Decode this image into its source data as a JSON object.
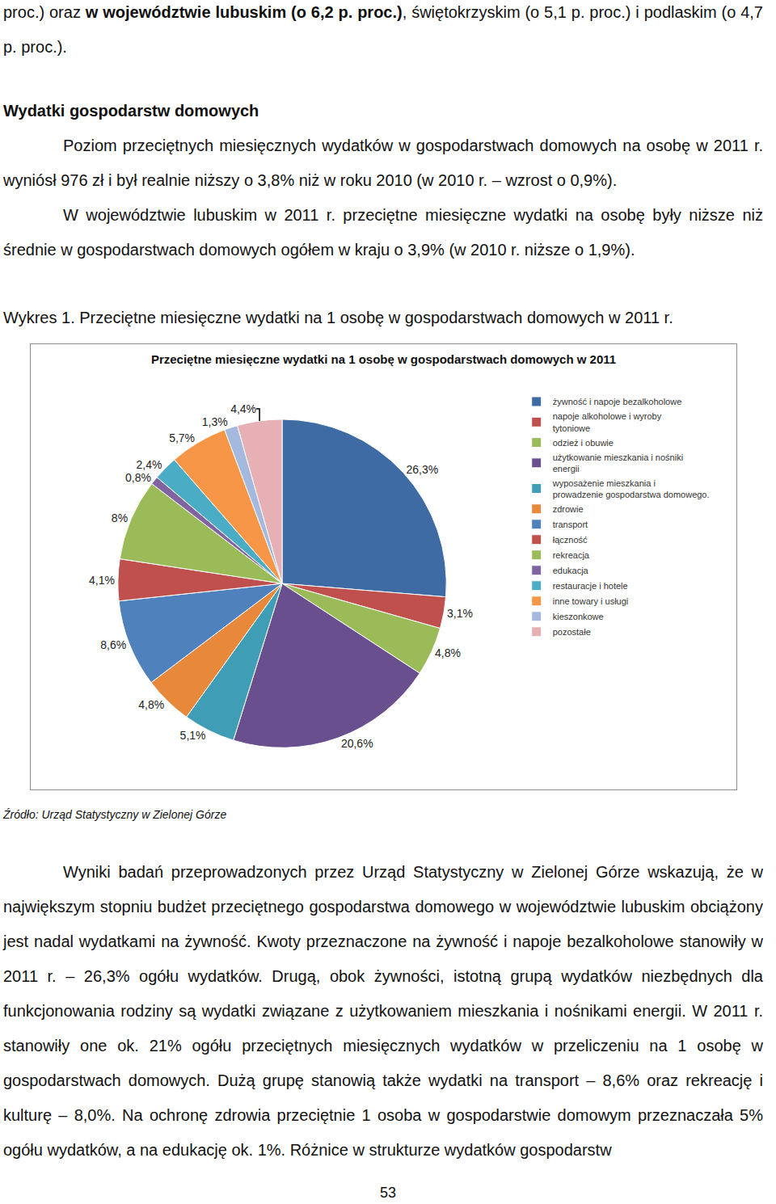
{
  "intro": [
    {
      "text": "proc.) oraz ",
      "bold": false
    },
    {
      "text": "w województwie lubuskim (o 6,2 p. proc.)",
      "bold": true
    },
    {
      "text": ", świętokrzyskim (o 5,1 p. proc.) i podlaskim (o 4,7 p. proc.).",
      "bold": false
    }
  ],
  "heading": "Wydatki gospodarstw domowych",
  "paragraphs": [
    "Poziom przeciętnych miesięcznych wydatków w gospodarstwach domowych na osobę w 2011 r. wyniósł 976 zł i był realnie niższy o 3,8% niż w roku 2010 (w 2010 r. – wzrost o 0,9%).",
    "W województwie lubuskim w 2011 r. przeciętne miesięczne wydatki na osobę były niższe niż średnie w gospodarstwach domowych ogółem w kraju o 3,9% (w 2010 r. niższe o 1,9%)."
  ],
  "figure_caption": "Wykres 1. Przeciętne miesięczne wydatki na 1 osobę w gospodarstwach domowych w 2011 r.",
  "chart_data": {
    "type": "pie",
    "title": "Przeciętne miesięczne wydatki na 1 osobę w gospodarstwach domowych w 2011",
    "categories": [
      "żywność i napoje bezalkoholowe",
      "napoje alkoholowe i wyroby tytoniowe",
      "odzież i obuwie",
      "użytkowanie mieszkania i nośniki energii",
      "wyposażenie mieszkania i prowadzenie gospodarstwa domowego.",
      "zdrowie",
      "transport",
      "łączność",
      "rekreacja",
      "edukacja",
      "restauracje i hotele",
      "inne towary i usługi",
      "kieszonkowe",
      "pozostałe"
    ],
    "values": [
      26.3,
      3.1,
      4.8,
      20.6,
      5.1,
      4.8,
      8.6,
      4.1,
      8,
      0.8,
      2.4,
      5.7,
      1.3,
      4.4
    ],
    "value_labels": [
      "26,3%",
      "3,1%",
      "4,8%",
      "20,6%",
      "5,1%",
      "4,8%",
      "8,6%",
      "4,1%",
      "8%",
      "0,8%",
      "2,4%",
      "5,7%",
      "1,3%",
      "4,4%"
    ],
    "colors": [
      "#3E6BA3",
      "#C0504D",
      "#9BBB59",
      "#6A4F8E",
      "#3F9DB5",
      "#E8883A",
      "#4F81BD",
      "#C0504D",
      "#9BBB59",
      "#8064A2",
      "#4BACC6",
      "#F79646",
      "#A5B9DE",
      "#E6B0B4"
    ],
    "data_labels": true,
    "legend": "right"
  },
  "source": "Źródło: Urząd Statystyczny w Zielonej Górze",
  "body": "Wyniki badań przeprowadzonych przez Urząd Statystyczny w Zielonej Górze wskazują, że w największym stopniu budżet przeciętnego gospodarstwa domowego w województwie lubuskim obciążony jest nadal wydatkami na żywność. Kwoty przeznaczone na żywność i napoje bezalkoholowe stanowiły w 2011 r. – 26,3% ogółu wydatków. Drugą, obok żywności, istotną grupą wydatków niezbędnych dla funkcjonowania rodziny są wydatki związane z użytkowaniem mieszkania i nośnikami energii. W 2011 r. stanowiły one ok. 21% ogółu przeciętnych miesięcznych wydatków w przeliczeniu na 1 osobę w gospodarstwach domowych. Dużą grupę stanowią także wydatki na transport – 8,6% oraz rekreację i kulturę – 8,0%. Na ochronę zdrowia przeciętnie 1 osoba w gospodarstwie domowym przeznaczała 5% ogółu wydatków, a na edukację ok. 1%. Różnice w strukturze wydatków gospodarstw",
  "page_number": "53"
}
